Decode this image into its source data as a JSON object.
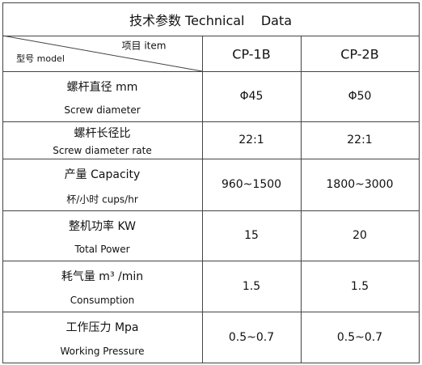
{
  "table": {
    "title": "技术参数 Technical    Data",
    "header": {
      "item": "项目 item",
      "model": "型号 model",
      "columns": [
        "CP-1B",
        "CP-2B"
      ]
    },
    "rows": [
      {
        "label": [
          "螺杆直径 mm",
          "Screw diameter"
        ],
        "values": [
          "Φ45",
          "Φ50"
        ]
      },
      {
        "label": [
          "螺杆长径比",
          "Screw diameter rate"
        ],
        "values": [
          "22:1",
          "22:1"
        ]
      },
      {
        "label": [
          "产量 Capacity",
          "杯/小时 cups/hr"
        ],
        "values": [
          "960~1500",
          "1800~3000"
        ]
      },
      {
        "label": [
          "整机功率 KW",
          "Total Power"
        ],
        "values": [
          "15",
          "20"
        ]
      },
      {
        "label": [
          "耗气量 m³ /min",
          "Consumption"
        ],
        "values": [
          "1.5",
          "1.5"
        ]
      },
      {
        "label": [
          "工作压力 Mpa",
          "Working Pressure"
        ],
        "values": [
          "0.5~0.7",
          "0.5~0.7"
        ]
      }
    ]
  }
}
